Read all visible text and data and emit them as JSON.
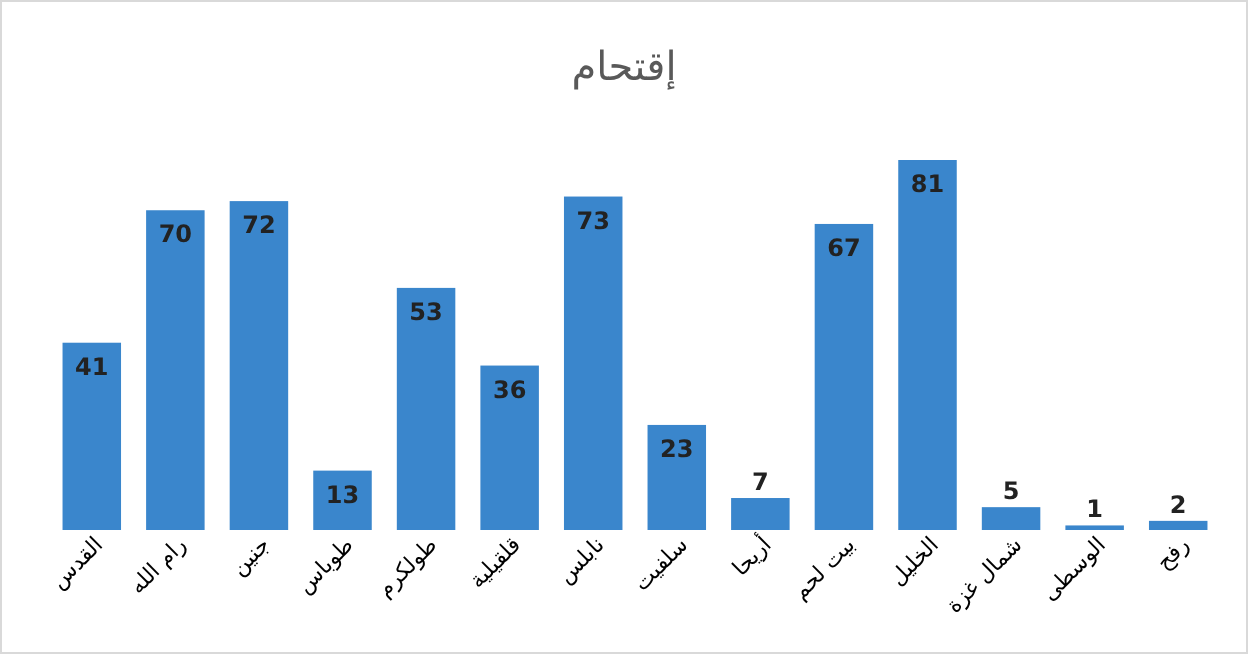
{
  "chart_data": {
    "type": "bar",
    "title": "إقتحام",
    "categories": [
      "القدس",
      "رام الله",
      "جنين",
      "طوباس",
      "طولكرم",
      "قلقيلية",
      "نابلس",
      "سلفيت",
      "أريحا",
      "بيت لحم",
      "الخليل",
      "شمال غزة",
      "الوسطى",
      "رفح"
    ],
    "values": [
      41,
      70,
      72,
      13,
      53,
      36,
      73,
      23,
      7,
      67,
      81,
      5,
      1,
      2
    ],
    "color": "#3a86cc",
    "data_labels": true
  }
}
